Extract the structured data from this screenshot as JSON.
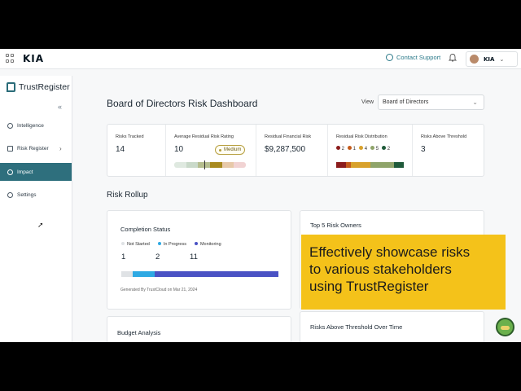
{
  "header": {
    "brand_logo": "KIA",
    "support_label": "Contact Support",
    "account_logo": "KIA"
  },
  "sidebar": {
    "brand": "TrustRegister",
    "collapse_icon": "«",
    "items": [
      {
        "label": "Intelligence",
        "icon": "eye-icon"
      },
      {
        "label": "Risk Register",
        "icon": "list-icon",
        "arrow": "›"
      },
      {
        "label": "Impact",
        "icon": "wifi-icon",
        "active": true
      },
      {
        "label": "Settings",
        "icon": "gear-icon"
      }
    ]
  },
  "main": {
    "title": "Board of Directors Risk Dashboard",
    "view_label": "View",
    "view_value": "Board of Directors",
    "stats": [
      {
        "label": "Risks Tracked",
        "value": "14"
      },
      {
        "label": "Average Residual Risk Rating",
        "value": "10",
        "badge": "Medium",
        "rating_fraction": 0.42
      },
      {
        "label": "Residual Financial Risk",
        "value": "$9,287,500"
      },
      {
        "label": "Residual Risk Distribution",
        "dist": [
          {
            "count": "2",
            "color": "#8b1c1c"
          },
          {
            "count": "1",
            "color": "#c45a1a"
          },
          {
            "count": "4",
            "color": "#d8a12b"
          },
          {
            "count": "5",
            "color": "#8fa46a"
          },
          {
            "count": "2",
            "color": "#1f5a3a"
          }
        ]
      },
      {
        "label": "Risks Above Threshold",
        "value": "3"
      }
    ],
    "section_title": "Risk Rollup",
    "completion": {
      "title": "Completion Status",
      "legend": [
        {
          "label": "Not Started",
          "count": "1",
          "color": "#dfe2e5"
        },
        {
          "label": "In Progress",
          "count": "2",
          "color": "#2ea9e3"
        },
        {
          "label": "Monitoring",
          "count": "11",
          "color": "#4a52c4"
        }
      ],
      "generated": "Generated By TrustCloud on Mar 21, 2024"
    },
    "owners_title": "Top 5 Risk Owners",
    "budget_title": "Budget Analysis",
    "threshold_title": "Risks Above Threshold Over Time"
  },
  "promo": {
    "line1": "Effectively showcase risks",
    "line2": "to various stakeholders",
    "line3": "using TrustRegister"
  }
}
